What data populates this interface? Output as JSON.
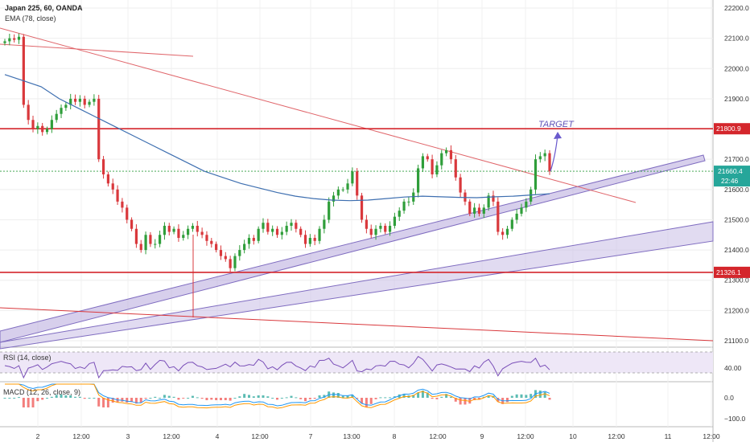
{
  "chart_data": {
    "type": "candlestick",
    "title": "Japan 225, 60, OANDA",
    "indicator_ema": "EMA (78, close)",
    "indicator_rsi": "RSI (14, close)",
    "indicator_macd": "MACD (12, 26, close, 9)",
    "ylim": [
      21050,
      22250
    ],
    "y_ticks": [
      "22200.0",
      "22100.0",
      "22000.0",
      "21900.0",
      "21800.0",
      "21700.0",
      "21600.0",
      "21500.0",
      "21400.0",
      "21300.0",
      "21200.0",
      "21100.0"
    ],
    "y_tick_values": [
      22200,
      22100,
      22000,
      21900,
      21800,
      21700,
      21600,
      21500,
      21400,
      21300,
      21200,
      21100
    ],
    "x_ticks": [
      "2",
      "12:00",
      "3",
      "12:00",
      "4",
      "12:00",
      "7",
      "13:00",
      "8",
      "12:00",
      "9",
      "12:00",
      "10",
      "12:00",
      "11",
      "12:00"
    ],
    "levels": [
      {
        "label": "21800.9",
        "value": 21800.9
      },
      {
        "label": "21326.1",
        "value": 21326.1
      }
    ],
    "current_price": {
      "label": "21660.4",
      "value": 21660.4,
      "countdown": "22:46"
    },
    "annotation": "TARGET",
    "closes": [
      22090,
      22100,
      22095,
      22105,
      21880,
      21830,
      21800,
      21810,
      21790,
      21800,
      21830,
      21850,
      21870,
      21880,
      21900,
      21890,
      21900,
      21880,
      21890,
      21900,
      21700,
      21650,
      21620,
      21600,
      21560,
      21540,
      21500,
      21470,
      21420,
      21400,
      21450,
      21420,
      21420,
      21450,
      21480,
      21460,
      21470,
      21440,
      21450,
      21470,
      21480,
      21460,
      21450,
      21430,
      21420,
      21400,
      21380,
      21370,
      21340,
      21380,
      21400,
      21420,
      21440,
      21430,
      21470,
      21490,
      21460,
      21470,
      21450,
      21460,
      21480,
      21490,
      21470,
      21450,
      21420,
      21440,
      21430,
      21470,
      21500,
      21560,
      21580,
      21600,
      21600,
      21620,
      21660,
      21580,
      21500,
      21470,
      21450,
      21470,
      21480,
      21460,
      21480,
      21510,
      21530,
      21560,
      21560,
      21590,
      21670,
      21710,
      21700,
      21650,
      21680,
      21720,
      21730,
      21700,
      21640,
      21590,
      21560,
      21520,
      21540,
      21520,
      21540,
      21580,
      21560,
      21460,
      21450,
      21470,
      21500,
      21520,
      21540,
      21560,
      21600,
      21700,
      21710,
      21720,
      21660
    ],
    "ema_values": [
      21980,
      21960,
      21940,
      21900,
      21870,
      21840,
      21810,
      21780,
      21750,
      21720,
      21690,
      21660,
      21640,
      21620,
      21605,
      21590,
      21578,
      21570,
      21565,
      21563,
      21565,
      21570,
      21575,
      21578,
      21576,
      21574,
      21573,
      21576,
      21578,
      21582,
      21586
    ]
  }
}
